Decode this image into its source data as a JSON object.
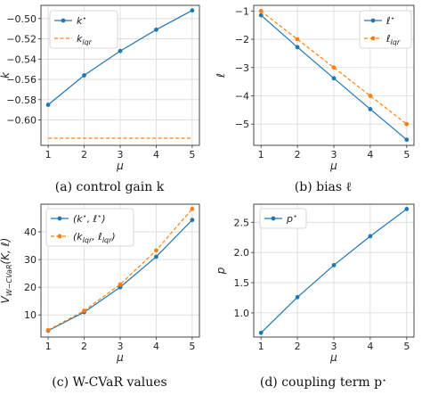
{
  "chart_data": [
    {
      "type": "line",
      "x": [
        1,
        2,
        3,
        4,
        5
      ],
      "xlabel": "μ",
      "ylabel": "k",
      "xlim": [
        0.8,
        5.2
      ],
      "ylim": [
        -0.625,
        -0.487
      ],
      "xticks": [
        1,
        2,
        3,
        4,
        5
      ],
      "yticks": [
        -0.6,
        -0.58,
        -0.56,
        -0.54,
        -0.52,
        -0.5
      ],
      "ytick_labels": [
        "−0.60",
        "−0.58",
        "−0.56",
        "−0.54",
        "−0.52",
        "−0.50"
      ],
      "grid": true,
      "legend": "top-left",
      "series": [
        {
          "name": "k*",
          "values": [
            -0.585,
            -0.556,
            -0.532,
            -0.511,
            -0.492
          ],
          "color": "#1f77b4",
          "style": "solid",
          "markers": true
        },
        {
          "name": "klqr",
          "values": [
            -0.618,
            -0.618,
            -0.618,
            -0.618,
            -0.618
          ],
          "color": "#ff7f0e",
          "style": "dashed",
          "markers": false
        }
      ],
      "caption": "(a) control gain k"
    },
    {
      "type": "line",
      "x": [
        1,
        2,
        3,
        4,
        5
      ],
      "xlabel": "μ",
      "ylabel": "ℓ",
      "xlim": [
        0.8,
        5.2
      ],
      "ylim": [
        -5.75,
        -0.8
      ],
      "xticks": [
        1,
        2,
        3,
        4,
        5
      ],
      "yticks": [
        -5,
        -4,
        -3,
        -2,
        -1
      ],
      "ytick_labels": [
        "−5",
        "−4",
        "−3",
        "−2",
        "−1"
      ],
      "grid": true,
      "legend": "top-right",
      "series": [
        {
          "name": "ℓ*",
          "values": [
            -1.15,
            -2.28,
            -3.38,
            -4.47,
            -5.55
          ],
          "color": "#1f77b4",
          "style": "solid",
          "markers": true
        },
        {
          "name": "ℓlqr",
          "values": [
            -1.0,
            -2.0,
            -3.0,
            -4.0,
            -5.0
          ],
          "color": "#ff7f0e",
          "style": "dashed",
          "markers": true
        }
      ],
      "caption": "(b) bias ℓ"
    },
    {
      "type": "line",
      "x": [
        1,
        2,
        3,
        4,
        5
      ],
      "xlabel": "μ",
      "ylabel": "VW−CVaR(K, ℓ)",
      "xlim": [
        0.8,
        5.2
      ],
      "ylim": [
        2,
        50
      ],
      "xticks": [
        1,
        2,
        3,
        4,
        5
      ],
      "yticks": [
        10,
        20,
        30,
        40
      ],
      "ytick_labels": [
        "10",
        "20",
        "30",
        "40"
      ],
      "grid": true,
      "legend": "top-left",
      "series": [
        {
          "name": "(k*, ℓ*)",
          "values": [
            4.3,
            11.0,
            20.0,
            31.0,
            44.3
          ],
          "color": "#1f77b4",
          "style": "solid",
          "markers": true
        },
        {
          "name": "(klqr, ℓlqr)",
          "values": [
            4.5,
            11.5,
            21.0,
            33.3,
            48.3
          ],
          "color": "#ff7f0e",
          "style": "dashed",
          "markers": true
        }
      ],
      "caption": "(c) W-CVaR values"
    },
    {
      "type": "line",
      "x": [
        1,
        2,
        3,
        4,
        5
      ],
      "xlabel": "μ",
      "ylabel": "p",
      "xlim": [
        0.8,
        5.2
      ],
      "ylim": [
        0.6,
        2.8
      ],
      "xticks": [
        1,
        2,
        3,
        4,
        5
      ],
      "yticks": [
        1.0,
        1.5,
        2.0,
        2.5
      ],
      "ytick_labels": [
        "1.0",
        "1.5",
        "2.0",
        "2.5"
      ],
      "grid": true,
      "legend": "top-left",
      "series": [
        {
          "name": "p*",
          "values": [
            0.67,
            1.26,
            1.79,
            2.27,
            2.72
          ],
          "color": "#1f77b4",
          "style": "solid",
          "markers": true
        }
      ],
      "caption": "(d) coupling term p*"
    }
  ]
}
